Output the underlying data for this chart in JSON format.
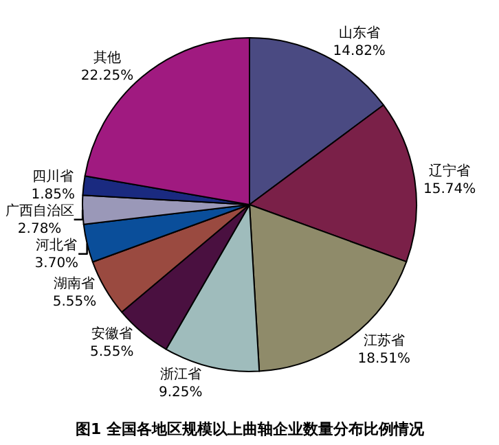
{
  "chart_data": {
    "type": "pie",
    "title": "图1 全国各地区规模以上曲轴企业数量分布比例情况",
    "categories": [
      "山东省",
      "辽宁省",
      "江苏省",
      "浙江省",
      "安徽省",
      "湖南省",
      "河北省",
      "广西自治区",
      "四川省",
      "其他"
    ],
    "values": [
      14.82,
      15.74,
      18.51,
      9.25,
      5.55,
      5.55,
      3.7,
      2.78,
      1.85,
      22.25
    ],
    "value_labels": [
      "14.82%",
      "15.74%",
      "18.51%",
      "9.25%",
      "5.55%",
      "5.55%",
      "3.70%",
      "2.78%",
      "1.85%",
      "22.25%"
    ],
    "colors": [
      "#4a4a82",
      "#7a2048",
      "#8f8b6a",
      "#9fbcbc",
      "#4a1040",
      "#9a4a40",
      "#0a4e9a",
      "#9a98b8",
      "#1a2a80",
      "#a01a80"
    ],
    "legend": false
  }
}
